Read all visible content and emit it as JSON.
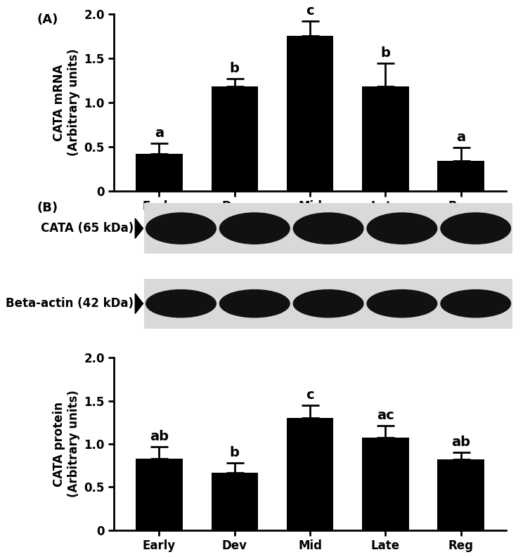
{
  "chart_data": [
    {
      "type": "bar",
      "panel_label": "(A)",
      "y_label": "CATA mRNA\n(Arbitrary units)",
      "categories": [
        "Early",
        "Dev",
        "Mid",
        "Late",
        "Reg"
      ],
      "values": [
        0.42,
        1.18,
        1.75,
        1.18,
        0.34
      ],
      "errors": [
        0.12,
        0.09,
        0.17,
        0.26,
        0.15
      ],
      "annotations": [
        "a",
        "b",
        "c",
        "b",
        "a"
      ],
      "color": "#000000",
      "ylim": [
        0,
        2
      ],
      "yticks": [
        0,
        0.5,
        {
          "value": 1,
          "label": "1.0"
        },
        1.5,
        {
          "value": 2,
          "label": "2.0"
        }
      ]
    },
    {
      "type": "bar",
      "panel_label": "(B)",
      "y_label": "CATA protein\n(Arbitrary units)",
      "categories": [
        "Early",
        "Dev",
        "Mid",
        "Late",
        "Reg"
      ],
      "values": [
        0.83,
        0.67,
        1.3,
        1.07,
        0.82
      ],
      "errors": [
        0.14,
        0.11,
        0.15,
        0.14,
        0.08
      ],
      "annotations": [
        "ab",
        "b",
        "c",
        "ac",
        "ab"
      ],
      "color": "#000000",
      "ylim": [
        0,
        2
      ],
      "yticks": [
        0,
        0.5,
        {
          "value": 1,
          "label": "1.0"
        },
        1.5,
        {
          "value": 2,
          "label": "2.0"
        }
      ]
    }
  ],
  "blot": {
    "bands": [
      "CATA (65 kDa)",
      "Beta-actin (42 kDa)"
    ]
  }
}
